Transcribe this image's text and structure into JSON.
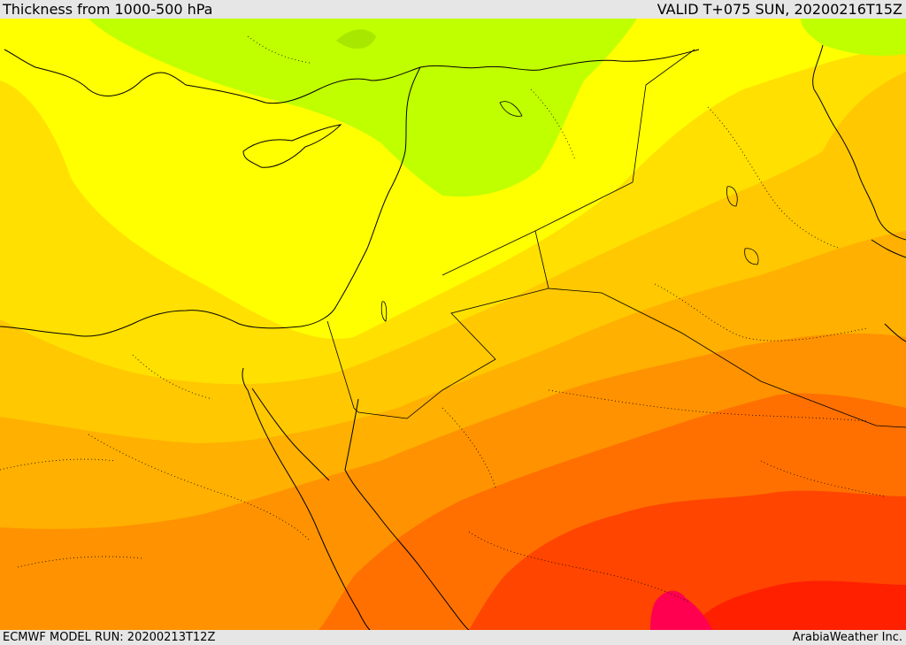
{
  "header": {
    "title": "Thickness from 1000-500 hPa",
    "valid": "VALID T+075 SUN, 20200216T15Z"
  },
  "footer": {
    "model_run": "ECMWF MODEL RUN: 20200213T12Z",
    "credit": "ArabiaWeather Inc."
  },
  "palette": {
    "light_green": "#c0ff00",
    "mid_green": "#a8e800",
    "yellow": "#ffff00",
    "gold": "#ffe000",
    "amber": "#ffc800",
    "orange_light": "#ffb000",
    "orange": "#ff9200",
    "dark_orange": "#ff7000",
    "red_orange": "#ff4500",
    "red": "#ff2000",
    "magenta": "#ff0050",
    "coastline": "#000000"
  }
}
